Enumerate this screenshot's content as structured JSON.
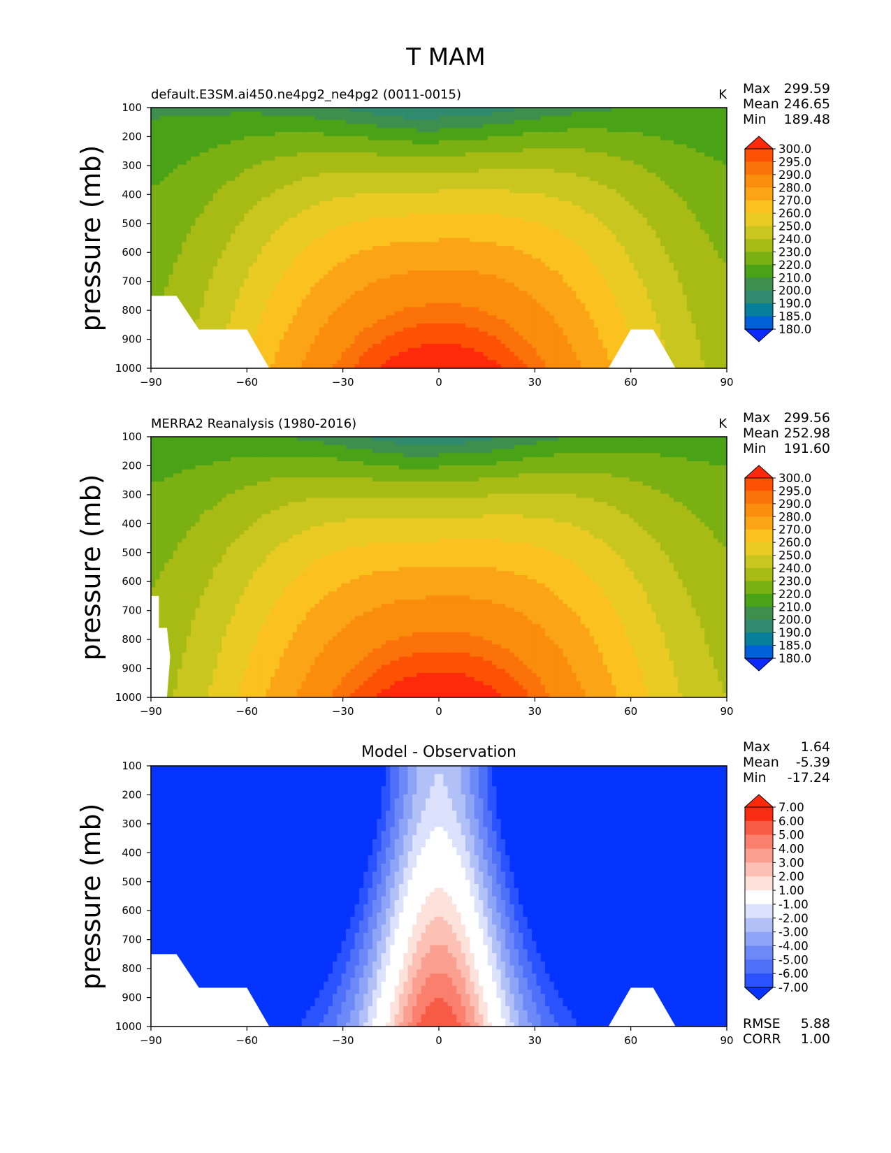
{
  "title": "T MAM",
  "colors": {
    "temp_fill": [
      "#0a2aff",
      "#0060d8",
      "#087f9a",
      "#2f8a6e",
      "#3e8f4e",
      "#4aa316",
      "#7bb012",
      "#a8bb14",
      "#c9c620",
      "#e9cb24",
      "#fbc11e",
      "#fba416",
      "#fa8d0c",
      "#fb720a",
      "#fd5204",
      "#ff2a0a"
    ],
    "diff_fill": [
      "#0533ff",
      "#2a53ff",
      "#4f70f8",
      "#6d88f7",
      "#8ea4f7",
      "#b2c0f8",
      "#dce2fb",
      "#ffffff",
      "#fde2dc",
      "#fcc0b4",
      "#fb9f90",
      "#fa7f6d",
      "#f85b45",
      "#f72c12",
      "#ff2a0a"
    ],
    "white": "#ffffff"
  },
  "panels": [
    {
      "id": "test",
      "left_title": "default.E3SM.ai450.ne4pg2_ne4pg2 (0011-0015)",
      "center_title": "",
      "units": "K",
      "stats": [
        {
          "label": "Max",
          "value": "299.59"
        },
        {
          "label": "Mean",
          "value": "246.65"
        },
        {
          "label": "Min",
          "value": "189.48"
        }
      ],
      "colorbar_labels": [
        "300.0",
        "295.0",
        "290.0",
        "280.0",
        "270.0",
        "260.0",
        "250.0",
        "240.0",
        "230.0",
        "220.0",
        "210.0",
        "200.0",
        "190.0",
        "185.0",
        "180.0"
      ],
      "footer_stats": []
    },
    {
      "id": "ref",
      "left_title": "MERRA2 Reanalysis (1980-2016)",
      "center_title": "",
      "units": "K",
      "stats": [
        {
          "label": "Max",
          "value": "299.56"
        },
        {
          "label": "Mean",
          "value": "252.98"
        },
        {
          "label": "Min",
          "value": "191.60"
        }
      ],
      "colorbar_labels": [
        "300.0",
        "295.0",
        "290.0",
        "280.0",
        "270.0",
        "260.0",
        "250.0",
        "240.0",
        "230.0",
        "220.0",
        "210.0",
        "200.0",
        "190.0",
        "185.0",
        "180.0"
      ],
      "footer_stats": []
    },
    {
      "id": "diff",
      "left_title": "",
      "center_title": "Model - Observation",
      "units": "",
      "stats": [
        {
          "label": "Max",
          "value": "1.64"
        },
        {
          "label": "Mean",
          "value": "-5.39"
        },
        {
          "label": "Min",
          "value": "-17.24"
        }
      ],
      "colorbar_labels": [
        "7.00",
        "6.00",
        "5.00",
        "4.00",
        "3.00",
        "2.00",
        "1.00",
        "-1.00",
        "-2.00",
        "-3.00",
        "-4.00",
        "-5.00",
        "-6.00",
        "-7.00"
      ],
      "footer_stats": [
        {
          "label": "RMSE",
          "value": "5.88"
        },
        {
          "label": "CORR",
          "value": "1.00"
        }
      ]
    }
  ],
  "chart_data": [
    {
      "type": "heatmap",
      "title": "default.E3SM.ai450.ne4pg2_ne4pg2 (0011-0015)",
      "ylabel": "pressure (mb)",
      "xlabel": "",
      "xlim": [
        -90,
        90
      ],
      "ylim": [
        1000,
        100
      ],
      "x_ticks": [
        "−90",
        "−60",
        "−30",
        "0",
        "30",
        "60",
        "90"
      ],
      "y_ticks": [
        "100",
        "200",
        "300",
        "400",
        "500",
        "600",
        "700",
        "800",
        "900",
        "1000"
      ],
      "field": "temperature",
      "units": "K",
      "profile": {
        "max": 299.59,
        "mean": 246.65,
        "min": 189.48,
        "pole_mid": 232,
        "upper_tropo": 208,
        "tropopause_min": 189
      },
      "masked_regions": [
        "south-pole-surface",
        "tibet-60N"
      ]
    },
    {
      "type": "heatmap",
      "title": "MERRA2 Reanalysis (1980-2016)",
      "ylabel": "pressure (mb)",
      "xlabel": "",
      "xlim": [
        -90,
        90
      ],
      "ylim": [
        1000,
        100
      ],
      "x_ticks": [
        "−90",
        "−60",
        "−30",
        "0",
        "30",
        "60",
        "90"
      ],
      "y_ticks": [
        "100",
        "200",
        "300",
        "400",
        "500",
        "600",
        "700",
        "800",
        "900",
        "1000"
      ],
      "field": "temperature",
      "units": "K",
      "profile": {
        "max": 299.56,
        "mean": 252.98,
        "min": 191.6,
        "pole_mid": 236,
        "upper_tropo": 212,
        "tropopause_min": 192
      },
      "masked_regions": [
        "antarctic-sliver"
      ]
    },
    {
      "type": "heatmap",
      "title": "Model - Observation",
      "ylabel": "pressure (mb)",
      "xlabel": "",
      "xlim": [
        -90,
        90
      ],
      "ylim": [
        1000,
        100
      ],
      "x_ticks": [
        "−90",
        "−60",
        "−30",
        "0",
        "30",
        "60",
        "90"
      ],
      "y_ticks": [
        "100",
        "200",
        "300",
        "400",
        "500",
        "600",
        "700",
        "800",
        "900",
        "1000"
      ],
      "field": "temperature difference",
      "units": "K",
      "profile": {
        "max": 1.64,
        "mean": -5.39,
        "min": -17.24
      },
      "masked_regions": [
        "south-pole-surface",
        "tibet-60N"
      ]
    }
  ]
}
